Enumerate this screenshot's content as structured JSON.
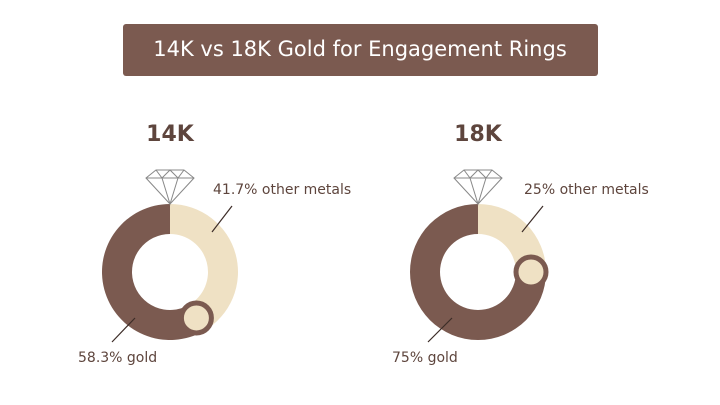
{
  "title": "14K vs 18K Gold for Engagement Rings",
  "chart_data": [
    {
      "type": "pie",
      "title": "14K",
      "values": [
        41.7,
        58.3
      ],
      "value_labels": [
        "41.7% other metals",
        "58.3% gold"
      ],
      "colors": [
        "#efe1c4",
        "#7b5a50"
      ],
      "donut": true
    },
    {
      "type": "pie",
      "title": "18K",
      "values": [
        25,
        75
      ],
      "value_labels": [
        "25% other metals",
        "75% gold"
      ],
      "colors": [
        "#efe1c4",
        "#7b5a50"
      ],
      "donut": true
    }
  ]
}
